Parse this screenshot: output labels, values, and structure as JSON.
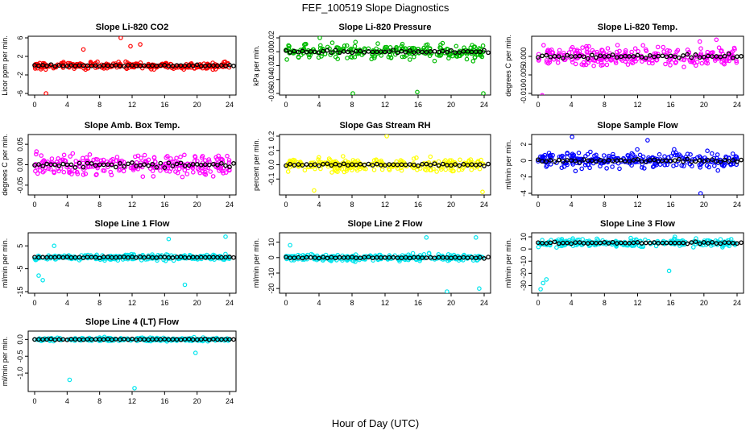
{
  "figure": {
    "title": "FEF_100519  Slope Diagnostics",
    "xlabel": "Hour of Day (UTC)"
  },
  "chart_data": [
    {
      "type": "scatter",
      "title": "Slope Li-820 CO2",
      "ylabel": "Licor ppm per min.",
      "color": "#ff0000",
      "xlim": [
        0,
        24
      ],
      "xticks": [
        0,
        4,
        8,
        12,
        16,
        20,
        24
      ],
      "ylim": [
        -6,
        6
      ],
      "yticks": [
        -6,
        -2,
        2,
        6
      ],
      "ytick_labels": [
        "-6",
        "-2",
        "2",
        "6"
      ],
      "spread": 0.9,
      "outliers": [
        [
          1.4,
          -6.0
        ],
        [
          10.6,
          6.0
        ],
        [
          11.8,
          4.2
        ],
        [
          13.0,
          4.6
        ],
        [
          6.0,
          3.5
        ]
      ],
      "series": [
        {
          "name": "raw",
          "color": "#ff0000"
        },
        {
          "name": "hourly",
          "color": "#000000",
          "values": [
            0,
            0,
            0,
            0,
            0,
            0,
            0,
            0,
            0,
            0,
            0,
            0,
            0,
            0,
            0,
            0,
            0,
            0,
            0,
            0,
            0,
            0,
            0,
            0,
            0
          ]
        }
      ]
    },
    {
      "type": "scatter",
      "title": "Slope Li-820 Pressure",
      "ylabel": "kPa per min.",
      "color": "#00bb00",
      "xlim": [
        0,
        24
      ],
      "xticks": [
        0,
        4,
        8,
        12,
        16,
        20,
        24
      ],
      "ylim": [
        -0.06,
        0.02
      ],
      "yticks": [
        -0.06,
        -0.04,
        -0.02,
        0.0,
        0.02
      ],
      "ytick_labels": [
        "-0.06",
        "-0.04",
        "-0.02",
        "0.00",
        "0.02"
      ],
      "spread": 0.013,
      "outliers": [
        [
          8.1,
          -0.06
        ],
        [
          15.9,
          -0.058
        ],
        [
          23.9,
          -0.06
        ],
        [
          4.1,
          0.02
        ]
      ],
      "series": [
        {
          "name": "raw",
          "color": "#00bb00"
        },
        {
          "name": "hourly",
          "color": "#000000",
          "values": [
            0.0,
            0.0,
            0.0,
            0.0,
            0.0,
            0.0,
            0.0,
            0.0,
            0.0,
            0.0,
            0.0,
            0.0,
            0.0,
            0.0,
            0.0,
            0.0,
            0.0,
            0.0,
            0.0,
            0.0,
            0.0,
            0.0,
            0.0,
            0.0,
            0.0
          ]
        }
      ]
    },
    {
      "type": "scatter",
      "title": "Slope Li-820 Temp.",
      "ylabel": "degrees C per min.",
      "color": "#ff00ff",
      "xlim": [
        0,
        24
      ],
      "xticks": [
        0,
        4,
        8,
        12,
        16,
        20,
        24
      ],
      "ylim": [
        -0.01,
        0.005
      ],
      "yticks": [
        -0.01,
        -0.005,
        0.0
      ],
      "ytick_labels": [
        "-0.010",
        "-0.005",
        "0.000"
      ],
      "spread": 0.003,
      "outliers": [
        [
          0.5,
          -0.0105
        ],
        [
          19.5,
          0.004
        ],
        [
          21.5,
          0.0045
        ]
      ],
      "series": [
        {
          "name": "raw",
          "color": "#ff00ff"
        },
        {
          "name": "hourly",
          "color": "#000000",
          "values": [
            0.0,
            0.0,
            0.0,
            0.0,
            0.0,
            0.0,
            0.0,
            0.0,
            0.0,
            0.0,
            0.0,
            0.0,
            0.0,
            0.0,
            0.0,
            0.0,
            0.0,
            0.0,
            0.0,
            0.0,
            0.0,
            0.0,
            0.0,
            0.0,
            0.0
          ]
        }
      ]
    },
    {
      "type": "scatter",
      "title": "Slope Amb. Box Temp.",
      "ylabel": "degrees C per min.",
      "color": "#ff00ff",
      "xlim": [
        0,
        24
      ],
      "xticks": [
        0,
        4,
        8,
        12,
        16,
        20,
        24
      ],
      "ylim": [
        -0.07,
        0.07
      ],
      "yticks": [
        -0.05,
        0.0,
        0.05
      ],
      "ytick_labels": [
        "-0.05",
        "0.00",
        "0.05"
      ],
      "spread": 0.035,
      "outliers": [],
      "series": [
        {
          "name": "raw",
          "color": "#ff00ff"
        },
        {
          "name": "hourly",
          "color": "#000000",
          "values": [
            0.0,
            0.0,
            0.0,
            0.0,
            0.0,
            0.0,
            0.0,
            0.0,
            0.0,
            0.0,
            0.0,
            0.0,
            0.0,
            0.0,
            0.0,
            0.0,
            0.0,
            0.0,
            0.0,
            0.0,
            0.0,
            0.0,
            0.0,
            0.0,
            0.0
          ]
        }
      ]
    },
    {
      "type": "scatter",
      "title": "Slope Gas Stream RH",
      "ylabel": "percent per min.",
      "color": "#ffff00",
      "xlim": [
        0,
        24
      ],
      "xticks": [
        0,
        4,
        8,
        12,
        16,
        20,
        24
      ],
      "ylim": [
        -0.2,
        0.2
      ],
      "yticks": [
        -0.1,
        0.0,
        0.1,
        0.2
      ],
      "ytick_labels": [
        "-0.1",
        "0.0",
        "0.1",
        "0.2"
      ],
      "spread": 0.05,
      "outliers": [
        [
          12.2,
          0.2
        ],
        [
          23.8,
          -0.19
        ],
        [
          3.4,
          -0.18
        ]
      ],
      "series": [
        {
          "name": "raw",
          "color": "#ffff00"
        },
        {
          "name": "hourly",
          "color": "#000000",
          "values": [
            0.0,
            0.0,
            0.0,
            0.0,
            0.0,
            0.0,
            0.0,
            0.0,
            0.0,
            0.0,
            0.0,
            0.0,
            0.0,
            0.0,
            0.0,
            0.0,
            0.0,
            0.0,
            0.0,
            0.0,
            0.0,
            0.0,
            0.0,
            0.0,
            0.0
          ]
        }
      ]
    },
    {
      "type": "scatter",
      "title": "Slope Sample Flow",
      "ylabel": "ml/min per min.",
      "color": "#0000ff",
      "xlim": [
        0,
        24
      ],
      "xticks": [
        0,
        4,
        8,
        12,
        16,
        20,
        24
      ],
      "ylim": [
        -4,
        3
      ],
      "yticks": [
        -4,
        -2,
        0,
        2
      ],
      "ytick_labels": [
        "-4",
        "-2",
        "0",
        "2"
      ],
      "spread": 1.2,
      "outliers": [
        [
          4.1,
          2.9
        ],
        [
          19.6,
          -4.0
        ],
        [
          13.2,
          2.5
        ]
      ],
      "series": [
        {
          "name": "raw",
          "color": "#0000ff"
        },
        {
          "name": "hourly",
          "color": "#000000",
          "values": [
            0,
            0,
            0,
            0,
            0,
            0,
            0,
            0,
            0,
            0,
            0,
            0,
            0,
            0,
            0,
            0,
            0,
            0,
            0,
            0,
            0,
            0,
            0,
            0,
            0
          ]
        }
      ]
    },
    {
      "type": "scatter",
      "title": "Slope Line 1 Flow",
      "ylabel": "ml/min per min.",
      "color": "#00e5ee",
      "xlim": [
        0,
        24
      ],
      "xticks": [
        0,
        4,
        8,
        12,
        16,
        20,
        24
      ],
      "ylim": [
        -15,
        10
      ],
      "yticks": [
        -15,
        -5,
        5
      ],
      "ytick_labels": [
        "-15",
        "-5",
        "5"
      ],
      "spread": 1.5,
      "outliers": [
        [
          0.5,
          -8
        ],
        [
          1.0,
          -10
        ],
        [
          18.5,
          -12
        ],
        [
          16.5,
          8
        ],
        [
          23.5,
          9
        ],
        [
          2.4,
          5
        ]
      ],
      "series": [
        {
          "name": "raw",
          "color": "#00e5ee"
        },
        {
          "name": "hourly",
          "color": "#000000",
          "values": [
            0,
            0,
            0,
            0,
            0,
            0,
            0,
            0,
            0,
            0,
            0,
            0,
            0,
            0,
            0,
            0,
            0,
            0,
            0,
            0,
            0,
            0,
            0,
            0,
            0
          ]
        }
      ]
    },
    {
      "type": "scatter",
      "title": "Slope Line 2 Flow",
      "ylabel": "ml/min per min.",
      "color": "#00e5ee",
      "xlim": [
        0,
        24
      ],
      "xticks": [
        0,
        4,
        8,
        12,
        16,
        20,
        24
      ],
      "ylim": [
        -22,
        15
      ],
      "yticks": [
        -20,
        -10,
        0,
        10
      ],
      "ytick_labels": [
        "-20",
        "-10",
        "0",
        "10"
      ],
      "spread": 2.5,
      "outliers": [
        [
          17.0,
          13
        ],
        [
          19.5,
          -22
        ],
        [
          23.4,
          -20
        ],
        [
          0.5,
          8
        ],
        [
          23.0,
          13
        ]
      ],
      "series": [
        {
          "name": "raw",
          "color": "#00e5ee"
        },
        {
          "name": "hourly",
          "color": "#000000",
          "values": [
            0,
            0,
            0,
            0,
            0,
            0,
            0,
            0,
            0,
            0,
            0,
            0,
            0,
            0,
            0,
            0,
            0,
            0,
            0,
            0,
            0,
            0,
            0,
            0,
            0
          ]
        }
      ]
    },
    {
      "type": "scatter",
      "title": "Slope Line 3 Flow",
      "ylabel": "ml/min per min.",
      "color": "#00e5ee",
      "xlim": [
        0,
        24
      ],
      "xticks": [
        0,
        4,
        8,
        12,
        16,
        20,
        24
      ],
      "ylim": [
        -35,
        12
      ],
      "yticks": [
        -30,
        -20,
        -10,
        0,
        10
      ],
      "ytick_labels": [
        "-30",
        "-20",
        "-10",
        "0",
        "10"
      ],
      "spread": 4,
      "outliers": [
        [
          0.3,
          -33
        ],
        [
          0.6,
          -28
        ],
        [
          1.0,
          -25
        ],
        [
          15.8,
          -18
        ],
        [
          22.0,
          8
        ],
        [
          16.5,
          10
        ]
      ],
      "series": [
        {
          "name": "raw",
          "color": "#00e5ee"
        },
        {
          "name": "hourly",
          "color": "#000000",
          "values": [
            5,
            5,
            5,
            5,
            5,
            5,
            5,
            5,
            5,
            5,
            5,
            5,
            5,
            5,
            5,
            5,
            5,
            5,
            5,
            5,
            5,
            5,
            5,
            5,
            5
          ]
        }
      ]
    },
    {
      "type": "scatter",
      "title": "Slope Line 4 (LT) Flow",
      "ylabel": "ml/min per min.",
      "color": "#00e5ee",
      "xlim": [
        0,
        24
      ],
      "xticks": [
        0,
        4,
        8,
        12,
        16,
        20,
        24
      ],
      "ylim": [
        -1.5,
        0.2
      ],
      "yticks": [
        -1.0,
        -0.5,
        0.0
      ],
      "ytick_labels": [
        "-1.0",
        "-0.5",
        "0.0"
      ],
      "spread": 0.06,
      "outliers": [
        [
          4.3,
          -1.2
        ],
        [
          12.3,
          -1.45
        ],
        [
          19.8,
          -0.4
        ]
      ],
      "series": [
        {
          "name": "raw",
          "color": "#00e5ee"
        },
        {
          "name": "hourly",
          "color": "#000000",
          "values": [
            0,
            0,
            0,
            0,
            0,
            0,
            0,
            0,
            0,
            0,
            0,
            0,
            0,
            0,
            0,
            0,
            0,
            0,
            0,
            0,
            0,
            0,
            0,
            0,
            0
          ]
        }
      ]
    }
  ]
}
